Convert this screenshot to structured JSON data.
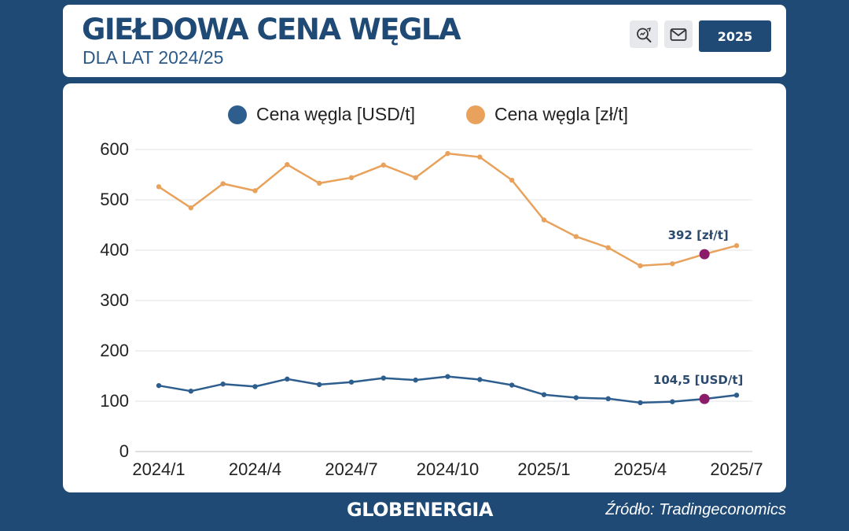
{
  "header": {
    "title": "GIEŁDOWA CENA WĘGLA",
    "subtitle": "DLA LAT 2024/25",
    "year_button": "2025",
    "icons": [
      "search-icon",
      "mail-icon"
    ]
  },
  "footer": {
    "logo": "GLOBENERGIA",
    "source": "Źródło: Tradingeconomics"
  },
  "colors": {
    "background": "#1f4a75",
    "usd_series": "#2d5e8e",
    "pln_series": "#e8a25c",
    "highlight": "#8a1c6a",
    "annotation_text": "#2c4a6e"
  },
  "chart_data": {
    "type": "line",
    "x": [
      "2024/1",
      "2024/2",
      "2024/3",
      "2024/4",
      "2024/5",
      "2024/6",
      "2024/7",
      "2024/8",
      "2024/9",
      "2024/10",
      "2024/11",
      "2024/12",
      "2025/1",
      "2025/2",
      "2025/3",
      "2025/4",
      "2025/5",
      "2025/6",
      "2025/7"
    ],
    "xticks": [
      "2024/1",
      "2024/4",
      "2024/7",
      "2024/10",
      "2025/1",
      "2025/4",
      "2025/7"
    ],
    "yticks": [
      0,
      100,
      200,
      300,
      400,
      500,
      600
    ],
    "ylim": [
      0,
      600
    ],
    "grid": true,
    "legend": "top-center",
    "series": [
      {
        "name": "Cena węgla [USD/t]",
        "color": "#2d5e8e",
        "values": [
          131,
          120,
          134,
          129,
          144,
          133,
          138,
          146,
          142,
          149,
          143,
          132,
          113,
          107,
          105,
          97,
          99,
          104.5,
          112
        ]
      },
      {
        "name": "Cena węgla [zł/t]",
        "color": "#e8a25c",
        "values": [
          526,
          484,
          532,
          518,
          570,
          533,
          544,
          569,
          544,
          592,
          585,
          539,
          460,
          427,
          405,
          369,
          373,
          392,
          409
        ]
      }
    ],
    "annotations": [
      {
        "series": 1,
        "index": 17,
        "text": "392 [zł/t]"
      },
      {
        "series": 0,
        "index": 17,
        "text": "104,5 [USD/t]"
      }
    ]
  }
}
